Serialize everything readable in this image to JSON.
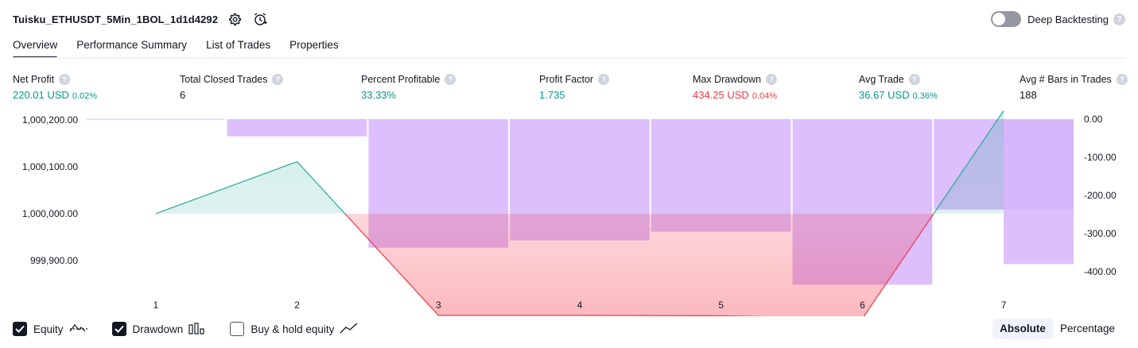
{
  "header": {
    "title": "Tuisku_ETHUSDT_5Min_1BOL_1d1d4292",
    "settings_icon": "gear-icon",
    "alert_icon": "alarm-clock-icon",
    "deep_backtesting_label": "Deep Backtesting",
    "deep_backtesting_on": false,
    "help_glyph": "?"
  },
  "tabs": [
    {
      "label": "Overview",
      "active": true
    },
    {
      "label": "Performance Summary",
      "active": false
    },
    {
      "label": "List of Trades",
      "active": false
    },
    {
      "label": "Properties",
      "active": false
    }
  ],
  "metrics": [
    {
      "label": "Net Profit",
      "value": "220.01 USD",
      "pct": "0.02%",
      "color": "#089981"
    },
    {
      "label": "Total Closed Trades",
      "value": "6",
      "pct": "",
      "color": "#131722"
    },
    {
      "label": "Percent Profitable",
      "value": "33.33%",
      "pct": "",
      "color": "#089981"
    },
    {
      "label": "Profit Factor",
      "value": "1.735",
      "pct": "",
      "color": "#089981"
    },
    {
      "label": "Max Drawdown",
      "value": "434.25 USD",
      "pct": "0.04%",
      "color": "#f23645"
    },
    {
      "label": "Avg Trade",
      "value": "36.67 USD",
      "pct": "0.36%",
      "color": "#089981"
    },
    {
      "label": "Avg # Bars in Trades",
      "value": "188",
      "pct": "",
      "color": "#131722"
    }
  ],
  "chart_data": {
    "type": "line",
    "categories": [
      "1",
      "2",
      "3",
      "4",
      "5",
      "6",
      "7"
    ],
    "left_axis": {
      "ticks": [
        "1,000,200.00",
        "1,000,100.00",
        "1,000,000.00",
        "999,900.00"
      ],
      "tick_values": [
        1000200,
        1000100,
        1000000,
        999900
      ],
      "ylim": [
        999815,
        1000222
      ]
    },
    "right_axis": {
      "ticks": [
        "0.00",
        "-100.00",
        "-200.00",
        "-300.00",
        "-400.00"
      ],
      "tick_values": [
        0,
        -100,
        -200,
        -300,
        -400
      ],
      "ylim": [
        -400,
        0
      ]
    },
    "equity": [
      1000000,
      1000111,
      999783,
      999783,
      999782,
      999776,
      1000220
    ],
    "equity_baseline": 1000000,
    "drawdown": [
      0,
      -45,
      -337,
      -318,
      -295,
      -434,
      -237
    ],
    "drawdown_series2": [
      -380
    ],
    "colors": {
      "equity_up": "#22ab94",
      "equity_down": "#f23645",
      "drawdown_bar": "#d6b4fc"
    }
  },
  "bottom": {
    "equity_label": "Equity",
    "equity_checked": true,
    "equity_icon": "equity-line-icon",
    "drawdown_label": "Drawdown",
    "drawdown_checked": true,
    "drawdown_icon": "drawdown-bars-icon",
    "buyhold_label": "Buy & hold equity",
    "buyhold_checked": false,
    "buyhold_icon": "buy-hold-line-icon",
    "absolute_label": "Absolute",
    "percentage_label": "Percentage"
  }
}
